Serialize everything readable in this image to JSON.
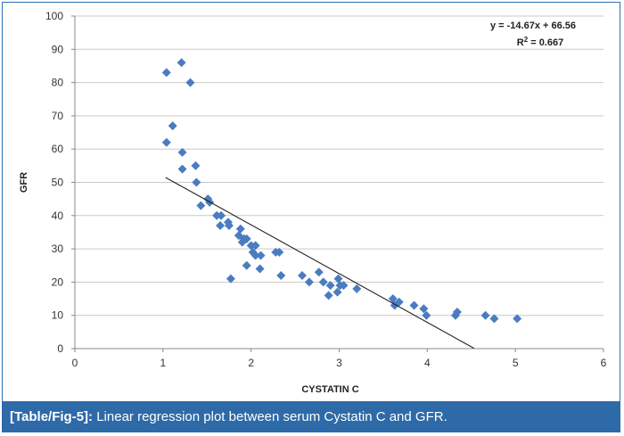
{
  "chart_data": {
    "type": "scatter",
    "title": "",
    "xlabel": "CYSTATIN C",
    "ylabel": "GFR",
    "xlim": [
      0,
      6
    ],
    "ylim": [
      0,
      100
    ],
    "xticks": [
      0,
      1,
      2,
      3,
      4,
      5,
      6
    ],
    "yticks": [
      0,
      10,
      20,
      30,
      40,
      50,
      60,
      70,
      80,
      90,
      100
    ],
    "grid": "horizontal",
    "marker_color": "#4a7cc0",
    "trendline": {
      "slope": -14.67,
      "intercept": 66.56,
      "x_range": [
        1.03,
        4.53
      ],
      "equation_label": "y = -14.67x + 66.56",
      "r2_prefix": "R",
      "r2_sup": "2",
      "r2_suffix": " = 0.667"
    },
    "series": [
      {
        "name": "GFR",
        "points": [
          [
            1.04,
            83
          ],
          [
            1.21,
            86
          ],
          [
            1.31,
            80
          ],
          [
            1.11,
            67
          ],
          [
            1.04,
            62
          ],
          [
            1.22,
            59
          ],
          [
            1.22,
            54
          ],
          [
            1.37,
            55
          ],
          [
            1.38,
            50
          ],
          [
            1.43,
            43
          ],
          [
            1.51,
            45
          ],
          [
            1.53,
            44
          ],
          [
            1.61,
            40
          ],
          [
            1.66,
            40
          ],
          [
            1.65,
            37
          ],
          [
            1.74,
            38
          ],
          [
            1.75,
            37
          ],
          [
            1.88,
            36
          ],
          [
            1.86,
            34
          ],
          [
            1.92,
            33
          ],
          [
            1.95,
            33
          ],
          [
            1.9,
            32
          ],
          [
            2.0,
            31
          ],
          [
            2.05,
            31
          ],
          [
            2.02,
            29
          ],
          [
            2.05,
            28
          ],
          [
            2.11,
            28
          ],
          [
            1.95,
            25
          ],
          [
            2.1,
            24
          ],
          [
            2.28,
            29
          ],
          [
            2.32,
            29
          ],
          [
            1.77,
            21
          ],
          [
            2.34,
            22
          ],
          [
            2.58,
            22
          ],
          [
            2.66,
            20
          ],
          [
            2.77,
            23
          ],
          [
            2.82,
            20
          ],
          [
            2.9,
            19
          ],
          [
            2.88,
            16
          ],
          [
            2.99,
            21
          ],
          [
            2.98,
            17
          ],
          [
            3.01,
            19
          ],
          [
            3.05,
            19
          ],
          [
            3.2,
            18
          ],
          [
            3.61,
            15
          ],
          [
            3.63,
            13
          ],
          [
            3.68,
            14
          ],
          [
            3.85,
            13
          ],
          [
            3.96,
            12
          ],
          [
            3.99,
            10
          ],
          [
            4.32,
            10
          ],
          [
            4.34,
            11
          ],
          [
            4.66,
            10
          ],
          [
            4.76,
            9
          ],
          [
            5.02,
            9
          ]
        ]
      }
    ]
  },
  "caption": {
    "label": "[Table/Fig-5]:",
    "text": "Linear regression plot between serum Cystatin C and GFR."
  }
}
